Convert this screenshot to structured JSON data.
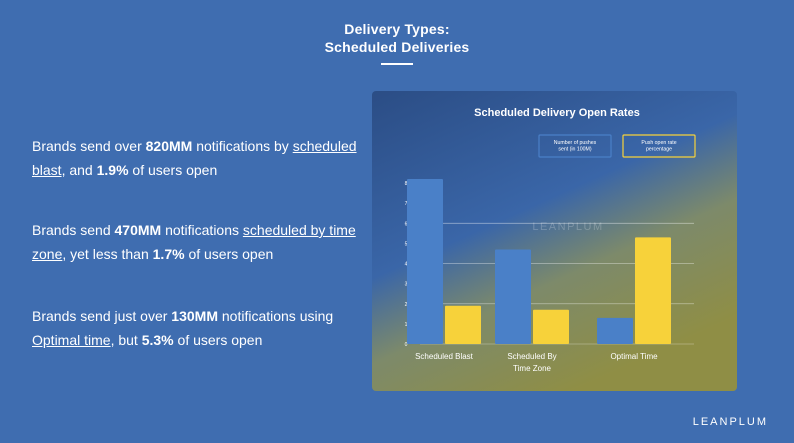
{
  "page": {
    "title_line1": "Delivery Types:",
    "title_line2": "Scheduled Deliveries",
    "brand": "LEANPLUM"
  },
  "statements": [
    {
      "pre": "Brands send over ",
      "b1": "820MM",
      "mid1": " notifications by ",
      "u": "scheduled blast",
      "mid2": ", and ",
      "b2": "1.9%",
      "post": " of users open"
    },
    {
      "pre": "Brands send ",
      "b1": "470MM",
      "mid1": " notifications ",
      "u": "scheduled by time zone",
      "mid2": ", yet less than ",
      "b2": "1.7%",
      "post": " of users open"
    },
    {
      "pre": "Brands send just over ",
      "b1": "130MM",
      "mid1": " notifications using ",
      "u": "Optimal time",
      "mid2": ", but ",
      "b2": "5.3%",
      "post": " of users open"
    }
  ],
  "colors": {
    "background": "#3f6db0",
    "series_blue": "#4a80c8",
    "series_yellow": "#f7d23a",
    "chart_top": "#2b4d85",
    "chart_bottom": "#8c8f4a"
  },
  "chart_data": {
    "type": "bar",
    "title": "Scheduled Delivery Open Rates",
    "watermark": "LEANPLUM",
    "categories": [
      "Scheduled Blast",
      "Scheduled By Time Zone",
      "Optimal Time"
    ],
    "category_lines": [
      [
        "Scheduled Blast"
      ],
      [
        "Scheduled By",
        "Time Zone"
      ],
      [
        "Optimal Time"
      ]
    ],
    "series": [
      {
        "name": "Number of pushes sent (in 100M)",
        "values": [
          8.2,
          4.7,
          1.3
        ],
        "color": "#4a80c8"
      },
      {
        "name": "Push open rate percentage",
        "values": [
          1.9,
          1.7,
          5.3
        ],
        "color": "#f7d23a"
      }
    ],
    "yticks": [
      "0",
      "1",
      "2",
      "3",
      "4",
      "5",
      "6",
      "7",
      "8"
    ],
    "ylim": [
      0,
      8.5
    ],
    "gridlines": [
      2,
      4,
      6
    ],
    "legend_position": "top-right",
    "xlabel": "",
    "ylabel": ""
  }
}
